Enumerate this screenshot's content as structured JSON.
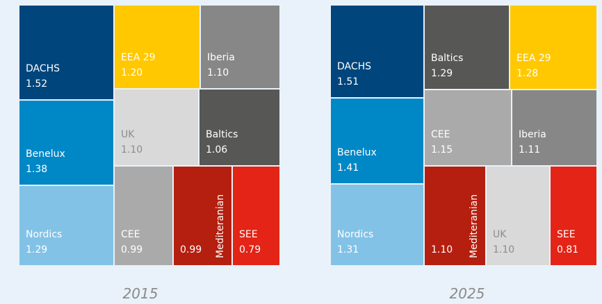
{
  "chart_data": [
    {
      "type": "treemap",
      "title": "2015",
      "categories": [
        "DACHS",
        "Benelux",
        "Nordics",
        "EEA 29",
        "Iberia",
        "UK",
        "Baltics",
        "CEE",
        "Mediteranian",
        "SEE"
      ],
      "values": [
        1.52,
        1.38,
        1.29,
        1.2,
        1.1,
        1.1,
        1.06,
        0.99,
        0.99,
        0.79
      ],
      "value_labels": [
        "1.52",
        "1.38",
        "1.29",
        "1.20",
        "1.10",
        "1.10",
        "1.06",
        "0.99",
        "0.99",
        "0.79"
      ],
      "colors": [
        "#00457c",
        "#0087c6",
        "#82c2e7",
        "#ffc800",
        "#878787",
        "#d9d9d9",
        "#575756",
        "#aaaaaa",
        "#b41f0f",
        "#e32416"
      ]
    },
    {
      "type": "treemap",
      "title": "2025",
      "categories": [
        "DACHS",
        "Benelux",
        "Nordics",
        "Baltics",
        "EEA 29",
        "CEE",
        "Iberia",
        "Mediteranian",
        "UK",
        "SEE"
      ],
      "values": [
        1.51,
        1.41,
        1.31,
        1.29,
        1.28,
        1.15,
        1.11,
        1.1,
        1.1,
        0.81
      ],
      "value_labels": [
        "1.51",
        "1.41",
        "1.31",
        "1.29",
        "1.28",
        "1.15",
        "1.11",
        "1.10",
        "1.10",
        "0.81"
      ],
      "colors": [
        "#00457c",
        "#0087c6",
        "#82c2e7",
        "#575756",
        "#ffc800",
        "#aaaaaa",
        "#878787",
        "#b41f0f",
        "#d9d9d9",
        "#e32416"
      ]
    }
  ]
}
